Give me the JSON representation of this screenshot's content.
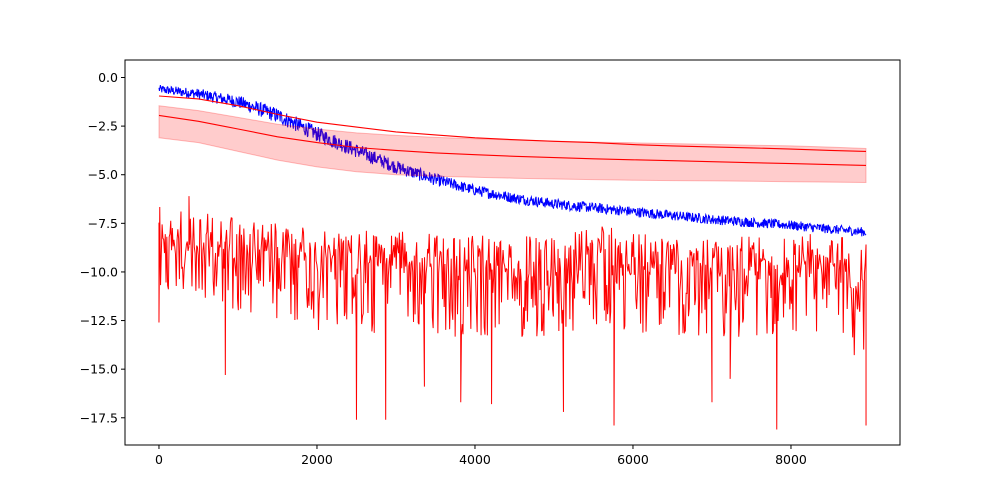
{
  "chart_data": {
    "type": "line",
    "title": "",
    "xlabel": "",
    "ylabel": "",
    "xlim": [
      -430,
      9380
    ],
    "ylim": [
      -18.9,
      0.9
    ],
    "grid": false,
    "legend": "none",
    "x_ticks": [
      {
        "value": 0,
        "label": "0"
      },
      {
        "value": 2000,
        "label": "2000"
      },
      {
        "value": 4000,
        "label": "4000"
      },
      {
        "value": 6000,
        "label": "6000"
      },
      {
        "value": 8000,
        "label": "8000"
      }
    ],
    "y_ticks": [
      {
        "value": 0,
        "label": "0.0"
      },
      {
        "value": -2.5,
        "label": "−2.5"
      },
      {
        "value": -5,
        "label": "−5.0"
      },
      {
        "value": -7.5,
        "label": "−7.5"
      },
      {
        "value": -10,
        "label": "−10.0"
      },
      {
        "value": -12.5,
        "label": "−12.5"
      },
      {
        "value": -15,
        "label": "−15.0"
      },
      {
        "value": -17.5,
        "label": "−17.5"
      }
    ],
    "series": [
      {
        "color": "#0000ff",
        "style": "noisy-line",
        "x_end": 8950,
        "trend": [
          [
            0,
            -0.6
          ],
          [
            500,
            -0.85
          ],
          [
            1000,
            -1.25
          ],
          [
            1500,
            -1.95
          ],
          [
            2000,
            -2.9
          ],
          [
            2500,
            -3.75
          ],
          [
            3000,
            -4.6
          ],
          [
            3500,
            -5.25
          ],
          [
            4000,
            -5.8
          ],
          [
            4500,
            -6.2
          ],
          [
            5000,
            -6.5
          ],
          [
            5500,
            -6.7
          ],
          [
            6000,
            -6.9
          ],
          [
            6500,
            -7.1
          ],
          [
            7000,
            -7.3
          ],
          [
            7500,
            -7.45
          ],
          [
            8000,
            -7.6
          ],
          [
            8500,
            -7.8
          ],
          [
            8950,
            -7.95
          ]
        ],
        "noise_amplitude": [
          [
            0,
            0.22
          ],
          [
            1500,
            0.4
          ],
          [
            2500,
            0.38
          ],
          [
            4000,
            0.28
          ],
          [
            8950,
            0.24
          ]
        ]
      },
      {
        "color": "#ff0000",
        "style": "line",
        "x": [
          0,
          500,
          1000,
          1500,
          2000,
          2500,
          3000,
          3500,
          4000,
          4500,
          5000,
          5500,
          6000,
          6500,
          7000,
          7500,
          8000,
          8500,
          8950
        ],
        "values": [
          -0.95,
          -1.1,
          -1.45,
          -1.9,
          -2.3,
          -2.55,
          -2.8,
          -2.95,
          -3.1,
          -3.2,
          -3.28,
          -3.35,
          -3.45,
          -3.52,
          -3.57,
          -3.62,
          -3.68,
          -3.75,
          -3.8
        ]
      },
      {
        "color": "#ff0000",
        "style": "line-with-band",
        "band_color": "#ff0000",
        "band_opacity": 0.2,
        "x": [
          0,
          500,
          1000,
          1500,
          2000,
          2500,
          3000,
          3500,
          4000,
          4500,
          5000,
          5500,
          6000,
          6500,
          7000,
          7500,
          8000,
          8500,
          8950
        ],
        "values": [
          -1.95,
          -2.25,
          -2.65,
          -3.05,
          -3.35,
          -3.6,
          -3.75,
          -3.88,
          -3.97,
          -4.05,
          -4.12,
          -4.18,
          -4.23,
          -4.28,
          -4.33,
          -4.38,
          -4.43,
          -4.48,
          -4.52
        ],
        "band_upper": [
          -1.45,
          -1.7,
          -2.05,
          -2.4,
          -2.65,
          -2.85,
          -2.98,
          -3.08,
          -3.15,
          -3.22,
          -3.27,
          -3.32,
          -3.36,
          -3.4,
          -3.44,
          -3.48,
          -3.52,
          -3.58,
          -3.65
        ],
        "band_lower": [
          -3.1,
          -3.35,
          -3.8,
          -4.25,
          -4.6,
          -4.85,
          -5.0,
          -5.08,
          -5.13,
          -5.18,
          -5.22,
          -5.25,
          -5.28,
          -5.3,
          -5.32,
          -5.34,
          -5.36,
          -5.38,
          -5.4
        ]
      },
      {
        "color": "#ff0000",
        "style": "spiky-line",
        "x_end": 8950,
        "baseline": [
          [
            0,
            -7.8
          ],
          [
            1000,
            -8.4
          ],
          [
            2000,
            -9.0
          ],
          [
            3000,
            -9.1
          ],
          [
            4000,
            -9.3
          ],
          [
            5000,
            -9.4
          ],
          [
            5600,
            -8.8
          ],
          [
            6000,
            -9.2
          ],
          [
            7000,
            -9.4
          ],
          [
            7500,
            -9.3
          ],
          [
            8000,
            -9.5
          ],
          [
            8400,
            -8.8
          ],
          [
            8700,
            -9.0
          ],
          [
            8800,
            -10.8
          ],
          [
            8950,
            -9.4
          ]
        ],
        "spike_depth": [
          [
            0,
            3.0
          ],
          [
            1500,
            4.0
          ],
          [
            3000,
            4.2
          ],
          [
            5000,
            4.0
          ],
          [
            7000,
            4.0
          ],
          [
            8950,
            4.5
          ]
        ],
        "extremes": [
          [
            0,
            -12.6
          ],
          [
            380,
            -6.1
          ],
          [
            840,
            -15.3
          ],
          [
            2500,
            -17.6
          ],
          [
            2870,
            -17.6
          ],
          [
            3360,
            -15.9
          ],
          [
            3820,
            -16.7
          ],
          [
            4210,
            -16.8
          ],
          [
            5120,
            -17.2
          ],
          [
            5760,
            -17.9
          ],
          [
            7000,
            -16.7
          ],
          [
            7230,
            -15.5
          ],
          [
            7820,
            -18.1
          ],
          [
            8950,
            -17.9
          ]
        ]
      }
    ]
  }
}
